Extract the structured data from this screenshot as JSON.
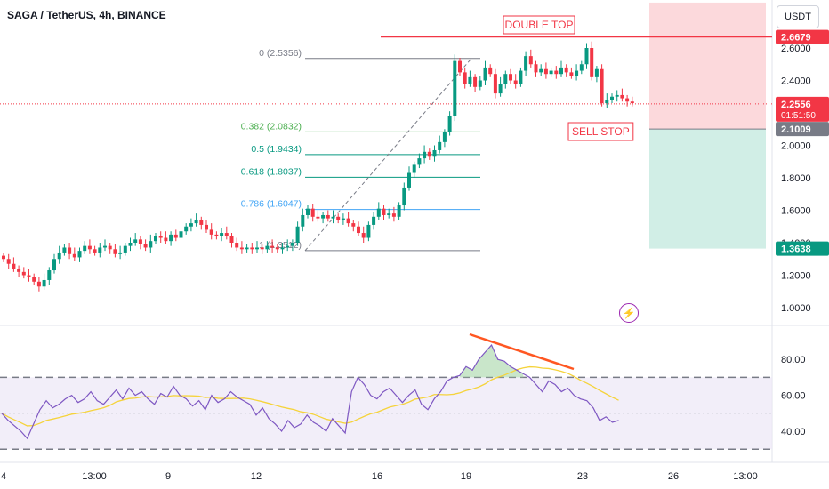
{
  "header": {
    "title": "SAGA / TetherUS, 4h, BINANCE",
    "currency_button": "USDT"
  },
  "annotations": {
    "double_top": "DOUBLE TOP",
    "sell_stop": "SELL STOP"
  },
  "colors": {
    "up": "#089981",
    "down": "#f23645",
    "rsi": "#7e57c2",
    "rsi_ma": "#f5d33b",
    "trend": "#ff5722",
    "tp_zone": "#d1eee6",
    "sl_zone": "#fcd9dc",
    "fib_382": "#4caf50",
    "fib_5": "#089981",
    "fib_618": "#089981",
    "fib_786": "#42a5f5",
    "fib_0": "#787b86",
    "fib_1": "#787b86"
  },
  "chart_data": [
    {
      "type": "candlestick",
      "title": "SAGA / TetherUS, 4h, BINANCE",
      "x_tick_labels": [
        "4",
        "13:00",
        "9",
        "12",
        "16",
        "19",
        "23",
        "26",
        "13:00"
      ],
      "y_tick_labels": [
        "1.0000",
        "1.2000",
        "1.4000",
        "1.6000",
        "1.8000",
        "2.0000",
        "2.4000",
        "2.6000"
      ],
      "ylim": [
        0.9,
        2.9
      ],
      "price_labels": [
        {
          "value": 2.6679,
          "text": "2.6679",
          "color": "#f23645"
        },
        {
          "value": 2.2556,
          "text": "2.2556",
          "subtext": "01:51:50",
          "color": "#f23645"
        },
        {
          "value": 2.1009,
          "text": "2.1009",
          "color": "#787b86"
        },
        {
          "value": 1.3638,
          "text": "1.3638",
          "color": "#089981"
        }
      ],
      "fib_levels": [
        {
          "label": "0 (2.5356)",
          "value": 2.5356,
          "key": "fib_0"
        },
        {
          "label": "0.382 (2.0832)",
          "value": 2.0832,
          "key": "fib_382"
        },
        {
          "label": "0.5 (1.9434)",
          "value": 1.9434,
          "key": "fib_5"
        },
        {
          "label": "0.618 (1.8037)",
          "value": 1.8037,
          "key": "fib_618"
        },
        {
          "label": "0.786 (1.6047)",
          "value": 1.6047,
          "key": "fib_786"
        },
        {
          "label": "1 (1.3512)",
          "value": 1.3512,
          "key": "fib_1"
        }
      ],
      "resistance": 2.6679,
      "position": {
        "entry": 2.1009,
        "stop": 2.88,
        "target": 1.3638
      },
      "closes": [
        1.3,
        1.27,
        1.24,
        1.22,
        1.2,
        1.19,
        1.16,
        1.13,
        1.17,
        1.23,
        1.3,
        1.34,
        1.37,
        1.33,
        1.31,
        1.35,
        1.38,
        1.36,
        1.34,
        1.37,
        1.38,
        1.36,
        1.33,
        1.34,
        1.38,
        1.4,
        1.42,
        1.39,
        1.37,
        1.41,
        1.44,
        1.43,
        1.41,
        1.45,
        1.43,
        1.47,
        1.5,
        1.52,
        1.54,
        1.51,
        1.48,
        1.45,
        1.44,
        1.46,
        1.44,
        1.4,
        1.37,
        1.36,
        1.37,
        1.36,
        1.37,
        1.36,
        1.38,
        1.37,
        1.36,
        1.37,
        1.38,
        1.4,
        1.5,
        1.57,
        1.61,
        1.56,
        1.55,
        1.57,
        1.55,
        1.56,
        1.54,
        1.55,
        1.52,
        1.5,
        1.46,
        1.43,
        1.51,
        1.56,
        1.61,
        1.57,
        1.58,
        1.56,
        1.63,
        1.74,
        1.83,
        1.88,
        1.92,
        1.96,
        1.93,
        1.97,
        2.02,
        2.08,
        2.18,
        2.52,
        2.45,
        2.38,
        2.42,
        2.36,
        2.4,
        2.48,
        2.44,
        2.32,
        2.38,
        2.44,
        2.4,
        2.38,
        2.46,
        2.55,
        2.5,
        2.45,
        2.47,
        2.44,
        2.46,
        2.44,
        2.48,
        2.45,
        2.43,
        2.46,
        2.5,
        2.6,
        2.42,
        2.47,
        2.26,
        2.28,
        2.3,
        2.31,
        2.29,
        2.27,
        2.26
      ],
      "rsi_values": [
        50,
        46,
        43,
        40,
        36,
        44,
        52,
        57,
        53,
        55,
        58,
        60,
        56,
        58,
        62,
        57,
        55,
        59,
        63,
        58,
        64,
        60,
        62,
        58,
        55,
        61,
        59,
        65,
        60,
        58,
        54,
        57,
        52,
        60,
        56,
        58,
        62,
        59,
        57,
        55,
        49,
        53,
        47,
        44,
        40,
        46,
        42,
        44,
        49,
        45,
        43,
        40,
        47,
        43,
        39,
        62,
        70,
        66,
        60,
        58,
        62,
        64,
        60,
        56,
        60,
        63,
        55,
        52,
        58,
        62,
        68,
        70,
        71,
        76,
        74,
        80,
        84,
        88,
        80,
        79,
        76,
        74,
        72,
        70,
        66,
        62,
        68,
        66,
        62,
        64,
        60,
        58,
        57,
        53,
        46,
        48,
        45,
        46
      ],
      "y2_tick_labels": [
        "40.00",
        "60.00",
        "80.00"
      ],
      "rsi_bands": [
        30,
        50,
        70
      ]
    }
  ]
}
